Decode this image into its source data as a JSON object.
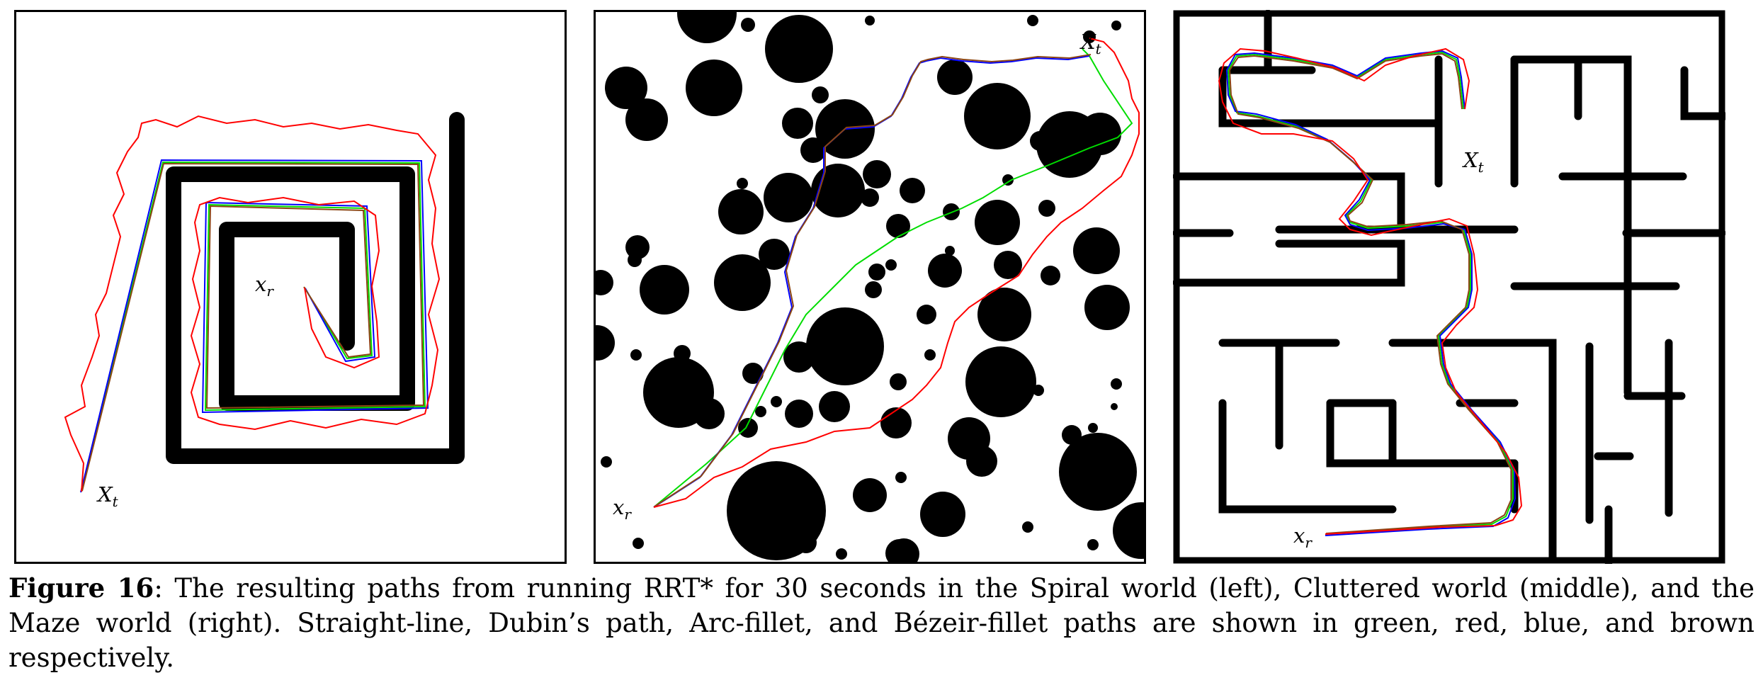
{
  "panels": [
    {
      "name": "spiral",
      "start_label": "x",
      "start_sub": "r",
      "goal_label": "X",
      "goal_sub": "t"
    },
    {
      "name": "cluttered",
      "start_label": "x",
      "start_sub": "r",
      "goal_label": "X",
      "goal_sub": "t"
    },
    {
      "name": "maze",
      "start_label": "x",
      "start_sub": "r",
      "goal_label": "X",
      "goal_sub": "t"
    }
  ],
  "colors": {
    "straight": "#00dd00",
    "dubins": "#ff0000",
    "arc": "#0000ff",
    "bezier": "#8b4513",
    "obstacle": "#000000"
  },
  "caption": {
    "label": "Figure 16",
    "text": ": The resulting paths from running RRT* for 30 seconds in the Spiral world (left), Cluttered world (middle), and the Maze world (right). Straight-line, Dubin’s path, Arc-fillet, and Bézeir-fillet paths are shown in green, red, blue, and brown respectively."
  }
}
